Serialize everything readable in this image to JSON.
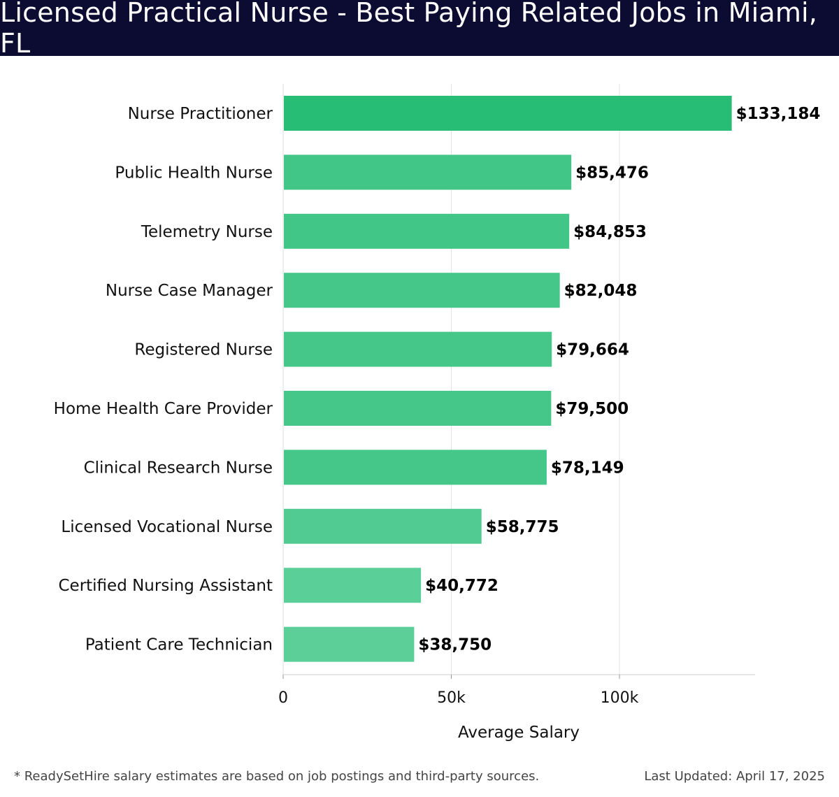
{
  "header": {
    "title": "Licensed Practical Nurse - Best Paying Related Jobs in Miami, FL"
  },
  "chart_data": {
    "type": "bar",
    "orientation": "horizontal",
    "categories": [
      "Nurse Practitioner",
      "Public Health Nurse",
      "Telemetry Nurse",
      "Nurse Case Manager",
      "Registered Nurse",
      "Home Health Care Provider",
      "Clinical Research Nurse",
      "Licensed Vocational Nurse",
      "Certified Nursing Assistant",
      "Patient Care Technician"
    ],
    "values": [
      133184,
      85476,
      84853,
      82048,
      79664,
      79500,
      78149,
      58775,
      40772,
      38750
    ],
    "data_labels": [
      "$133,184",
      "$85,476",
      "$84,853",
      "$82,048",
      "$79,664",
      "$79,500",
      "$78,149",
      "$58,775",
      "$40,772",
      "$38,750"
    ],
    "xlabel": "Average Salary",
    "xticks": [
      {
        "value": 0,
        "label": "0"
      },
      {
        "value": 50000,
        "label": "50k"
      },
      {
        "value": 100000,
        "label": "100k"
      }
    ],
    "xlim": [
      0,
      140000
    ],
    "grid": "vertical",
    "bar_color_dark": "#27bd74",
    "bar_color_light": "#5ccf99"
  },
  "footer": {
    "note": "* ReadySetHire salary estimates are based on job postings and third-party sources.",
    "updated": "Last Updated: April 17, 2025"
  }
}
